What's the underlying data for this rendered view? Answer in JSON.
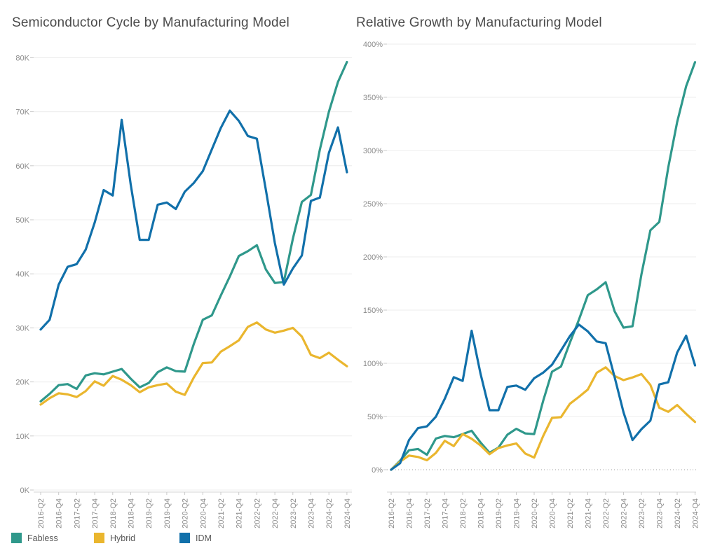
{
  "legend": {
    "items": [
      {
        "label": "Fabless",
        "color": "#2f988b"
      },
      {
        "label": "Hybrid",
        "color": "#eab62e"
      },
      {
        "label": "IDM",
        "color": "#1170aa"
      }
    ]
  },
  "chart_data": [
    {
      "type": "line",
      "title": "Semiconductor Cycle by Manufacturing Model",
      "xlabel": "",
      "ylabel": "",
      "unit": "thousands",
      "ylim": [
        0,
        80000
      ],
      "grid": true,
      "y_ticks": [
        {
          "v": 0,
          "label": "0K"
        },
        {
          "v": 10,
          "label": "10K"
        },
        {
          "v": 20,
          "label": "20K"
        },
        {
          "v": 30,
          "label": "30K"
        },
        {
          "v": 40,
          "label": "40K"
        },
        {
          "v": 50,
          "label": "50K"
        },
        {
          "v": 60,
          "label": "60K"
        },
        {
          "v": 70,
          "label": "70K"
        },
        {
          "v": 80,
          "label": "80K"
        }
      ],
      "x_tick_labels": [
        "2016-Q2",
        "2016-Q4",
        "2017-Q2",
        "2017-Q4",
        "2018-Q2",
        "2018-Q4",
        "2019-Q2",
        "2019-Q4",
        "2020-Q2",
        "2020-Q4",
        "2021-Q2",
        "2021-Q4",
        "2022-Q2",
        "2022-Q4",
        "2023-Q2",
        "2023-Q4",
        "2024-Q2",
        "2024-Q4"
      ],
      "quarters": [
        "2016-Q2",
        "2016-Q3",
        "2016-Q4",
        "2017-Q1",
        "2017-Q2",
        "2017-Q3",
        "2017-Q4",
        "2018-Q1",
        "2018-Q2",
        "2018-Q3",
        "2018-Q4",
        "2019-Q1",
        "2019-Q2",
        "2019-Q3",
        "2019-Q4",
        "2020-Q1",
        "2020-Q2",
        "2020-Q3",
        "2020-Q4",
        "2021-Q1",
        "2021-Q2",
        "2021-Q3",
        "2021-Q4",
        "2022-Q1",
        "2022-Q2",
        "2022-Q3",
        "2022-Q4",
        "2023-Q1",
        "2023-Q2",
        "2023-Q3",
        "2023-Q4",
        "2024-Q1",
        "2024-Q2",
        "2024-Q3",
        "2024-Q4"
      ],
      "series": [
        {
          "name": "Fabless",
          "color": "#2f988b",
          "values_k": [
            16.4,
            17.8,
            19.4,
            19.6,
            18.7,
            21.2,
            21.6,
            21.4,
            21.9,
            22.4,
            20.6,
            19.0,
            19.8,
            21.8,
            22.7,
            22.0,
            21.9,
            27.0,
            31.5,
            32.3,
            36.0,
            39.5,
            43.3,
            44.2,
            45.3,
            40.8,
            38.3,
            38.5,
            46.5,
            53.3,
            54.6,
            63.0,
            70.0,
            75.5,
            79.2
          ]
        },
        {
          "name": "Hybrid",
          "color": "#eab62e",
          "values_k": [
            15.8,
            17.0,
            17.9,
            17.7,
            17.2,
            18.3,
            20.1,
            19.3,
            21.1,
            20.4,
            19.4,
            18.1,
            19.0,
            19.4,
            19.7,
            18.2,
            17.6,
            20.8,
            23.5,
            23.6,
            25.6,
            26.6,
            27.7,
            30.2,
            31.0,
            29.7,
            29.1,
            29.5,
            30.0,
            28.4,
            25.0,
            24.4,
            25.4,
            24.1,
            22.9
          ]
        },
        {
          "name": "IDM",
          "color": "#1170aa",
          "values_k": [
            29.7,
            31.5,
            38.0,
            41.3,
            41.8,
            44.5,
            49.5,
            55.5,
            54.5,
            68.5,
            56.5,
            46.3,
            46.3,
            52.8,
            53.2,
            52.0,
            55.2,
            56.8,
            59.0,
            63.0,
            67.0,
            70.2,
            68.3,
            65.5,
            65.0,
            55.5,
            45.7,
            38.0,
            41.0,
            43.4,
            53.5,
            54.1,
            62.4,
            67.1,
            58.8
          ]
        }
      ]
    },
    {
      "type": "line",
      "title": "Relative Growth by Manufacturing Model",
      "xlabel": "",
      "ylabel": "",
      "unit": "percent",
      "ylim": [
        0,
        400
      ],
      "grid": true,
      "zero_line_dotted": true,
      "y_ticks": [
        {
          "v": 0,
          "label": "0%"
        },
        {
          "v": 50,
          "label": "50%"
        },
        {
          "v": 100,
          "label": "100%"
        },
        {
          "v": 150,
          "label": "150%"
        },
        {
          "v": 200,
          "label": "200%"
        },
        {
          "v": 250,
          "label": "250%"
        },
        {
          "v": 300,
          "label": "300%"
        },
        {
          "v": 350,
          "label": "350%"
        },
        {
          "v": 400,
          "label": "400%"
        }
      ],
      "x_tick_labels": [
        "2016-Q2",
        "2016-Q4",
        "2017-Q2",
        "2017-Q4",
        "2018-Q2",
        "2018-Q4",
        "2019-Q2",
        "2019-Q4",
        "2020-Q2",
        "2020-Q4",
        "2021-Q2",
        "2021-Q4",
        "2022-Q2",
        "2022-Q4",
        "2023-Q2",
        "2023-Q4",
        "2024-Q2",
        "2024-Q4"
      ],
      "quarters": [
        "2016-Q2",
        "2016-Q3",
        "2016-Q4",
        "2017-Q1",
        "2017-Q2",
        "2017-Q3",
        "2017-Q4",
        "2018-Q1",
        "2018-Q2",
        "2018-Q3",
        "2018-Q4",
        "2019-Q1",
        "2019-Q2",
        "2019-Q3",
        "2019-Q4",
        "2020-Q1",
        "2020-Q2",
        "2020-Q3",
        "2020-Q4",
        "2021-Q1",
        "2021-Q2",
        "2021-Q3",
        "2021-Q4",
        "2022-Q1",
        "2022-Q2",
        "2022-Q3",
        "2022-Q4",
        "2023-Q1",
        "2023-Q2",
        "2023-Q3",
        "2023-Q4",
        "2024-Q1",
        "2024-Q2",
        "2024-Q3",
        "2024-Q4"
      ],
      "series": [
        {
          "name": "Fabless",
          "color": "#2f988b",
          "values_pct": [
            0,
            8.5,
            18.3,
            19.5,
            14.0,
            29.3,
            31.7,
            30.5,
            33.5,
            36.6,
            25.6,
            15.9,
            20.7,
            32.9,
            38.4,
            34.1,
            33.5,
            64.6,
            92.1,
            97.0,
            119.5,
            140.9,
            164.0,
            169.5,
            176.2,
            148.8,
            133.5,
            134.8,
            183.5,
            225.0,
            232.9,
            284.1,
            326.8,
            360.4,
            383.0
          ]
        },
        {
          "name": "Hybrid",
          "color": "#eab62e",
          "values_pct": [
            0,
            7.6,
            13.3,
            12.0,
            8.9,
            15.8,
            27.2,
            22.2,
            33.5,
            29.1,
            22.8,
            14.6,
            20.3,
            22.8,
            24.7,
            15.2,
            11.4,
            31.6,
            48.7,
            49.4,
            62.0,
            68.4,
            75.3,
            91.1,
            96.2,
            88.0,
            84.2,
            86.7,
            89.9,
            79.7,
            58.2,
            54.4,
            60.8,
            52.5,
            44.9
          ]
        },
        {
          "name": "IDM",
          "color": "#1170aa",
          "values_pct": [
            0,
            6.1,
            27.9,
            39.1,
            40.7,
            49.8,
            66.7,
            86.9,
            83.5,
            130.6,
            90.2,
            55.9,
            55.9,
            77.8,
            79.1,
            75.1,
            85.9,
            91.2,
            98.7,
            112.1,
            125.6,
            136.4,
            130.0,
            120.5,
            118.9,
            86.9,
            53.9,
            27.9,
            38.0,
            46.1,
            80.1,
            82.2,
            110.1,
            125.9,
            98.0
          ]
        }
      ]
    }
  ]
}
